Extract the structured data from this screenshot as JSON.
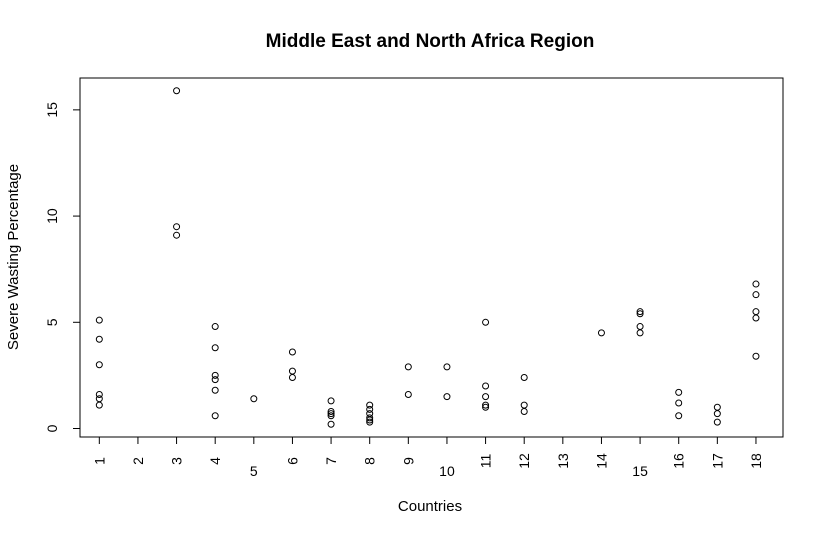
{
  "chart_data": {
    "type": "scatter",
    "title": "Middle East and North Africa Region",
    "xlabel": "Countries",
    "ylabel": "Severe Wasting Percentage",
    "xlim": [
      0.5,
      18.7
    ],
    "ylim": [
      -0.4,
      16.5
    ],
    "grid": false,
    "legend": "none",
    "x_tick_labels": [
      "1",
      "2",
      "3",
      "4",
      "5",
      "6",
      "7",
      "8",
      "9",
      "10",
      "11",
      "12",
      "13",
      "14",
      "15",
      "16",
      "17",
      "18"
    ],
    "x_tick_labels_rotated": [
      true,
      true,
      true,
      true,
      false,
      true,
      true,
      true,
      true,
      false,
      true,
      true,
      true,
      true,
      false,
      true,
      true,
      true
    ],
    "y_ticks": [
      0,
      5,
      10,
      15
    ],
    "y_tick_labels": [
      "0",
      "5",
      "10",
      "15"
    ],
    "point_style": "open-circle",
    "point_color": "#000000",
    "points": [
      {
        "x": 1,
        "y": 5.1
      },
      {
        "x": 1,
        "y": 4.2
      },
      {
        "x": 1,
        "y": 3.0
      },
      {
        "x": 1,
        "y": 1.6
      },
      {
        "x": 1,
        "y": 1.4
      },
      {
        "x": 1,
        "y": 1.1
      },
      {
        "x": 3,
        "y": 15.9
      },
      {
        "x": 3,
        "y": 9.5
      },
      {
        "x": 3,
        "y": 9.1
      },
      {
        "x": 4,
        "y": 4.8
      },
      {
        "x": 4,
        "y": 3.8
      },
      {
        "x": 4,
        "y": 2.5
      },
      {
        "x": 4,
        "y": 2.3
      },
      {
        "x": 4,
        "y": 1.8
      },
      {
        "x": 4,
        "y": 0.6
      },
      {
        "x": 5,
        "y": 1.4
      },
      {
        "x": 6,
        "y": 3.6
      },
      {
        "x": 6,
        "y": 2.7
      },
      {
        "x": 6,
        "y": 2.4
      },
      {
        "x": 7,
        "y": 1.3
      },
      {
        "x": 7,
        "y": 0.8
      },
      {
        "x": 7,
        "y": 0.7
      },
      {
        "x": 7,
        "y": 0.6
      },
      {
        "x": 7,
        "y": 0.2
      },
      {
        "x": 8,
        "y": 1.1
      },
      {
        "x": 8,
        "y": 0.9
      },
      {
        "x": 8,
        "y": 0.7
      },
      {
        "x": 8,
        "y": 0.5
      },
      {
        "x": 8,
        "y": 0.4
      },
      {
        "x": 8,
        "y": 0.3
      },
      {
        "x": 9,
        "y": 2.9
      },
      {
        "x": 9,
        "y": 1.6
      },
      {
        "x": 10,
        "y": 2.9
      },
      {
        "x": 10,
        "y": 1.5
      },
      {
        "x": 11,
        "y": 5.0
      },
      {
        "x": 11,
        "y": 2.0
      },
      {
        "x": 11,
        "y": 1.5
      },
      {
        "x": 11,
        "y": 1.1
      },
      {
        "x": 11,
        "y": 1.0
      },
      {
        "x": 12,
        "y": 2.4
      },
      {
        "x": 12,
        "y": 1.1
      },
      {
        "x": 12,
        "y": 0.8
      },
      {
        "x": 14,
        "y": 4.5
      },
      {
        "x": 15,
        "y": 5.5
      },
      {
        "x": 15,
        "y": 5.4
      },
      {
        "x": 15,
        "y": 4.8
      },
      {
        "x": 15,
        "y": 4.5
      },
      {
        "x": 16,
        "y": 1.7
      },
      {
        "x": 16,
        "y": 1.2
      },
      {
        "x": 16,
        "y": 0.6
      },
      {
        "x": 17,
        "y": 1.0
      },
      {
        "x": 17,
        "y": 0.7
      },
      {
        "x": 17,
        "y": 0.3
      },
      {
        "x": 18,
        "y": 6.8
      },
      {
        "x": 18,
        "y": 6.3
      },
      {
        "x": 18,
        "y": 5.5
      },
      {
        "x": 18,
        "y": 5.2
      },
      {
        "x": 18,
        "y": 3.4
      }
    ]
  }
}
